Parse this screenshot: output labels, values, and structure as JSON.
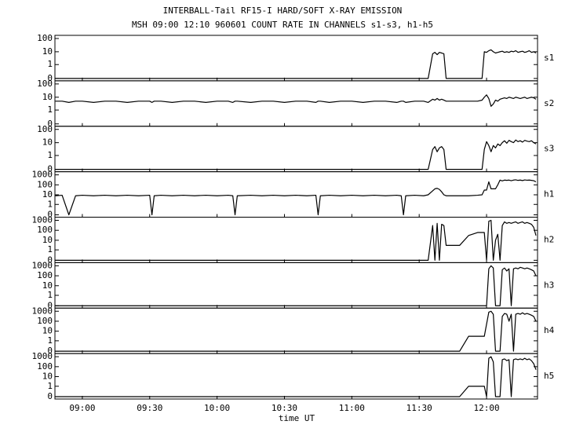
{
  "chart_data": {
    "type": "line",
    "title": "INTERBALL-Tail RF15-I HARD/SOFT X-RAY EMISSION",
    "subtitle": "MSH 09:00 12:10 960601  COUNT RATE IN CHANNELS s1-s3, h1-h5",
    "xlabel": "time UT",
    "xlim": [
      527.8,
      742.7
    ],
    "xticks": [
      {
        "value": 540,
        "label": "09:00"
      },
      {
        "value": 570,
        "label": "09:30"
      },
      {
        "value": 600,
        "label": "10:00"
      },
      {
        "value": 630,
        "label": "10:30"
      },
      {
        "value": 660,
        "label": "11:00"
      },
      {
        "value": 690,
        "label": "11:30"
      },
      {
        "value": 720,
        "label": "12:00"
      }
    ],
    "yscale": "log",
    "x": [
      528,
      531,
      534,
      537,
      540,
      545,
      550,
      555,
      560,
      565,
      570,
      571,
      572,
      575,
      580,
      585,
      590,
      595,
      600,
      605,
      607,
      608,
      609,
      615,
      620,
      625,
      630,
      635,
      640,
      644,
      645,
      646,
      650,
      655,
      660,
      665,
      670,
      675,
      680,
      682,
      683,
      684,
      688,
      692,
      694,
      696,
      697,
      698,
      699,
      700,
      701,
      702,
      704,
      708,
      712,
      716,
      718,
      719,
      720,
      721,
      722,
      723,
      724,
      725,
      726,
      727,
      728,
      729,
      730,
      731,
      732,
      733,
      734,
      735,
      736,
      737,
      738,
      739,
      740,
      741,
      742
    ],
    "series": [
      {
        "name": "s1",
        "color": "#000000",
        "ylim": [
          0,
          100
        ],
        "yticks": [
          0,
          1,
          10,
          100
        ],
        "values": [
          0,
          0,
          0,
          0,
          0,
          0,
          0,
          0,
          0,
          0,
          0,
          0,
          0,
          0,
          0,
          0,
          0,
          0,
          0,
          0,
          0,
          0,
          0,
          0,
          0,
          0,
          0,
          0,
          0,
          0,
          0,
          0,
          0,
          0,
          0,
          0,
          0,
          0,
          0,
          0,
          0,
          0,
          0,
          0,
          0,
          7,
          9,
          6,
          9,
          8,
          7,
          0,
          0,
          0,
          0,
          0,
          0,
          10,
          9,
          12,
          14,
          10,
          8,
          9,
          10,
          11,
          9,
          10,
          9,
          11,
          10,
          12,
          9,
          10,
          11,
          9,
          10,
          12,
          9,
          10,
          8
        ]
      },
      {
        "name": "s2",
        "color": "#000000",
        "ylim": [
          0,
          100
        ],
        "yticks": [
          0,
          1,
          10,
          100
        ],
        "values": [
          5,
          5,
          4,
          5,
          5,
          4,
          5,
          5,
          4,
          5,
          5,
          4,
          5,
          5,
          4,
          5,
          5,
          4,
          5,
          5,
          4,
          5,
          5,
          4,
          5,
          5,
          4,
          5,
          5,
          4,
          5,
          5,
          4,
          5,
          5,
          4,
          5,
          5,
          4,
          5,
          5,
          4,
          5,
          5,
          4,
          7,
          6,
          8,
          6,
          7,
          6,
          5,
          5,
          5,
          5,
          5,
          6,
          10,
          15,
          8,
          2,
          3,
          6,
          5,
          7,
          8,
          9,
          8,
          10,
          9,
          8,
          10,
          9,
          8,
          9,
          10,
          8,
          9,
          10,
          9,
          7
        ]
      },
      {
        "name": "s3",
        "color": "#000000",
        "ylim": [
          0,
          100
        ],
        "yticks": [
          0,
          1,
          10,
          100
        ],
        "values": [
          0,
          0,
          0,
          0,
          0,
          0,
          0,
          0,
          0,
          0,
          0,
          0,
          0,
          0,
          0,
          0,
          0,
          0,
          0,
          0,
          0,
          0,
          0,
          0,
          0,
          0,
          0,
          0,
          0,
          0,
          0,
          0,
          0,
          0,
          0,
          0,
          0,
          0,
          0,
          0,
          0,
          0,
          0,
          0,
          0,
          3,
          5,
          2,
          4,
          5,
          3,
          0,
          0,
          0,
          0,
          0,
          0,
          3,
          12,
          6,
          2,
          6,
          4,
          8,
          6,
          10,
          14,
          9,
          15,
          12,
          10,
          16,
          12,
          14,
          11,
          15,
          13,
          12,
          14,
          10,
          8
        ]
      },
      {
        "name": "h1",
        "color": "#000000",
        "ylim": [
          0,
          1000
        ],
        "yticks": [
          0,
          1,
          10,
          100,
          1000
        ],
        "values": [
          8,
          9,
          0,
          8,
          9,
          8,
          9,
          8,
          9,
          8,
          9,
          0,
          8,
          9,
          8,
          9,
          8,
          9,
          8,
          9,
          8,
          0,
          8,
          9,
          8,
          9,
          8,
          9,
          8,
          9,
          0,
          8,
          9,
          8,
          9,
          8,
          9,
          8,
          9,
          8,
          0,
          8,
          9,
          8,
          10,
          25,
          40,
          45,
          35,
          20,
          10,
          8,
          8,
          8,
          8,
          9,
          10,
          30,
          30,
          200,
          40,
          40,
          40,
          100,
          300,
          250,
          300,
          280,
          300,
          260,
          300,
          320,
          280,
          300,
          270,
          310,
          290,
          300,
          280,
          260,
          200
        ]
      },
      {
        "name": "h2",
        "color": "#000000",
        "ylim": [
          0,
          1000
        ],
        "yticks": [
          0,
          1,
          10,
          100,
          1000
        ],
        "values": [
          0,
          0,
          0,
          0,
          0,
          0,
          0,
          0,
          0,
          0,
          0,
          0,
          0,
          0,
          0,
          0,
          0,
          0,
          0,
          0,
          0,
          0,
          0,
          0,
          0,
          0,
          0,
          0,
          0,
          0,
          0,
          0,
          0,
          0,
          0,
          0,
          0,
          0,
          0,
          0,
          0,
          0,
          0,
          0,
          0,
          300,
          0,
          500,
          0,
          400,
          300,
          3,
          3,
          3,
          30,
          60,
          60,
          60,
          0,
          800,
          1000,
          0,
          10,
          40,
          0,
          300,
          700,
          500,
          600,
          500,
          600,
          700,
          500,
          600,
          700,
          500,
          600,
          500,
          400,
          200,
          30
        ]
      },
      {
        "name": "h3",
        "color": "#000000",
        "ylim": [
          0,
          1000
        ],
        "yticks": [
          0,
          1,
          10,
          100,
          1000
        ],
        "values": [
          0,
          0,
          0,
          0,
          0,
          0,
          0,
          0,
          0,
          0,
          0,
          0,
          0,
          0,
          0,
          0,
          0,
          0,
          0,
          0,
          0,
          0,
          0,
          0,
          0,
          0,
          0,
          0,
          0,
          0,
          0,
          0,
          0,
          0,
          0,
          0,
          0,
          0,
          0,
          0,
          0,
          0,
          0,
          0,
          0,
          0,
          0,
          0,
          0,
          0,
          0,
          0,
          0,
          0,
          0,
          0,
          0,
          0,
          0,
          500,
          1000,
          600,
          0,
          0,
          0,
          400,
          600,
          300,
          500,
          0,
          500,
          600,
          500,
          700,
          600,
          500,
          600,
          500,
          400,
          300,
          100
        ]
      },
      {
        "name": "h4",
        "color": "#000000",
        "ylim": [
          0,
          1000
        ],
        "yticks": [
          0,
          1,
          10,
          100,
          1000
        ],
        "values": [
          0,
          0,
          0,
          0,
          0,
          0,
          0,
          0,
          0,
          0,
          0,
          0,
          0,
          0,
          0,
          0,
          0,
          0,
          0,
          0,
          0,
          0,
          0,
          0,
          0,
          0,
          0,
          0,
          0,
          0,
          0,
          0,
          0,
          0,
          0,
          0,
          0,
          0,
          0,
          0,
          0,
          0,
          0,
          0,
          0,
          0,
          0,
          0,
          0,
          0,
          0,
          0,
          0,
          0,
          3,
          3,
          3,
          3,
          50,
          800,
          1000,
          500,
          0,
          0,
          0,
          300,
          600,
          500,
          100,
          500,
          0,
          500,
          600,
          500,
          700,
          500,
          600,
          500,
          400,
          300,
          100
        ]
      },
      {
        "name": "h5",
        "color": "#000000",
        "ylim": [
          0,
          1000
        ],
        "yticks": [
          0,
          1,
          10,
          100,
          1000
        ],
        "values": [
          0,
          0,
          0,
          0,
          0,
          0,
          0,
          0,
          0,
          0,
          0,
          0,
          0,
          0,
          0,
          0,
          0,
          0,
          0,
          0,
          0,
          0,
          0,
          0,
          0,
          0,
          0,
          0,
          0,
          0,
          0,
          0,
          0,
          0,
          0,
          0,
          0,
          0,
          0,
          0,
          0,
          0,
          0,
          0,
          0,
          0,
          0,
          0,
          0,
          0,
          0,
          0,
          0,
          0,
          1,
          1,
          1,
          1,
          0,
          700,
          1000,
          300,
          0,
          0,
          0,
          500,
          600,
          400,
          500,
          0,
          500,
          600,
          500,
          600,
          500,
          700,
          500,
          600,
          400,
          200,
          50
        ]
      }
    ]
  }
}
